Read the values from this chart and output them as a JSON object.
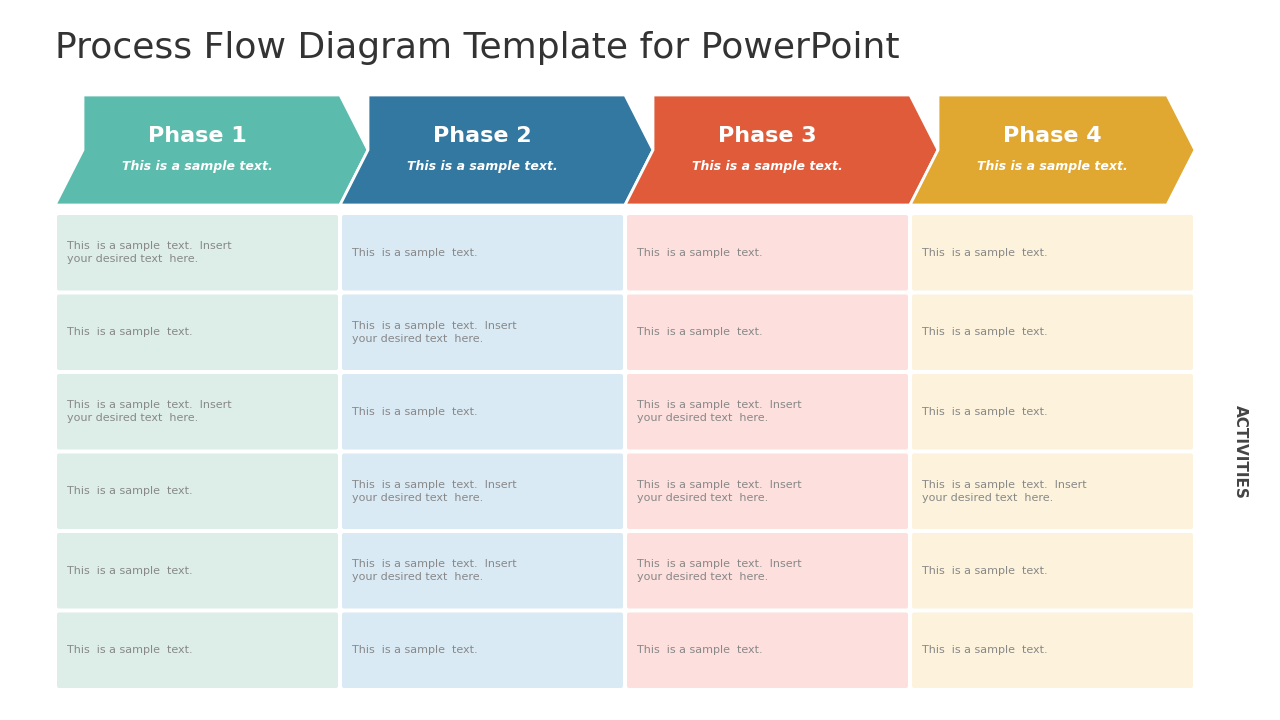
{
  "title": "Process Flow Diagram Template for PowerPoint",
  "title_fontsize": 26,
  "title_color": "#333333",
  "background_color": "#ffffff",
  "phases": [
    "Phase 1",
    "Phase 2",
    "Phase 3",
    "Phase 4"
  ],
  "phase_subtitles": [
    "This is a sample text.",
    "This is a sample text.",
    "This is a sample text.",
    "This is a sample text."
  ],
  "chevron_colors": [
    "#5bbcad",
    "#3278a0",
    "#e05b3a",
    "#e0a830"
  ],
  "cell_bg_colors": [
    "#ddeee8",
    "#daeaf5",
    "#fde0dd",
    "#fdf3dc"
  ],
  "cell_text_color": "#888888",
  "activities_label": "ACTIVITIES",
  "num_rows": 6,
  "cell_texts": [
    [
      "This  is a sample  text.  Insert\nyour desired text  here.",
      "This  is a sample  text.",
      "This  is a sample  text.",
      "This  is a sample  text."
    ],
    [
      "This  is a sample  text.",
      "This  is a sample  text.  Insert\nyour desired text  here.",
      "This  is a sample  text.",
      "This  is a sample  text."
    ],
    [
      "This  is a sample  text.  Insert\nyour desired text  here.",
      "This  is a sample  text.",
      "This  is a sample  text.  Insert\nyour desired text  here.",
      "This  is a sample  text."
    ],
    [
      "This  is a sample  text.",
      "This  is a sample  text.  Insert\nyour desired text  here.",
      "This  is a sample  text.  Insert\nyour desired text  here.",
      "This  is a sample  text.  Insert\nyour desired text  here."
    ],
    [
      "This  is a sample  text.",
      "This  is a sample  text.  Insert\nyour desired text  here.",
      "This  is a sample  text.  Insert\nyour desired text  here.",
      "This  is a sample  text."
    ],
    [
      "This  is a sample  text.",
      "This  is a sample  text.",
      "This  is a sample  text.",
      "This  is a sample  text."
    ]
  ]
}
